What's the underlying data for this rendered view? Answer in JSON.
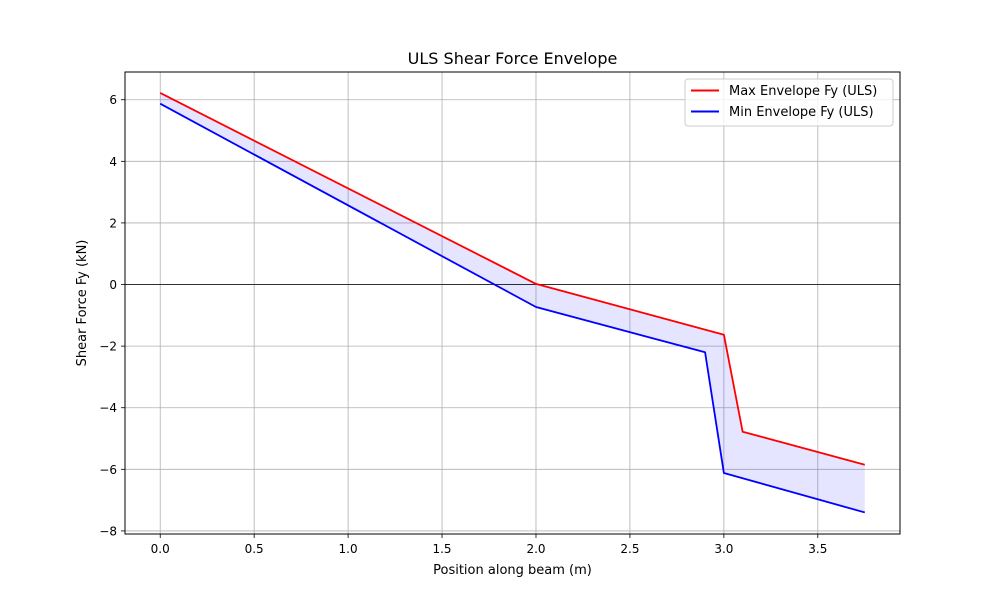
{
  "chart_data": {
    "type": "line",
    "title": "ULS Shear Force Envelope",
    "xlabel": "Position along beam (m)",
    "ylabel": "Shear Force Fy (kN)",
    "xlim": [
      -0.1875,
      3.9375
    ],
    "ylim": [
      -8.1,
      6.9
    ],
    "xticks": [
      0.0,
      0.5,
      1.0,
      1.5,
      2.0,
      2.5,
      3.0,
      3.5
    ],
    "xtick_labels": [
      "0.0",
      "0.5",
      "1.0",
      "1.5",
      "2.0",
      "2.5",
      "3.0",
      "3.5"
    ],
    "yticks": [
      -8,
      -6,
      -4,
      -2,
      0,
      2,
      4,
      6
    ],
    "ytick_labels": [
      "−8",
      "−6",
      "−4",
      "−2",
      "0",
      "2",
      "4",
      "6"
    ],
    "grid": true,
    "zero_line": true,
    "legend_position": "top-right",
    "series": [
      {
        "name": "Max Envelope Fy (ULS)",
        "color": "#ff0000",
        "x": [
          0.0,
          2.0,
          3.0,
          3.1,
          3.75
        ],
        "y": [
          6.22,
          0.02,
          -1.63,
          -4.78,
          -5.85
        ]
      },
      {
        "name": "Min Envelope Fy (ULS)",
        "color": "#0000ff",
        "x": [
          0.0,
          2.0,
          2.9,
          3.0,
          3.75
        ],
        "y": [
          5.87,
          -0.73,
          -2.2,
          -6.12,
          -7.4
        ]
      }
    ],
    "fill_between": {
      "color": "#0000ff",
      "opacity": 0.1
    }
  }
}
